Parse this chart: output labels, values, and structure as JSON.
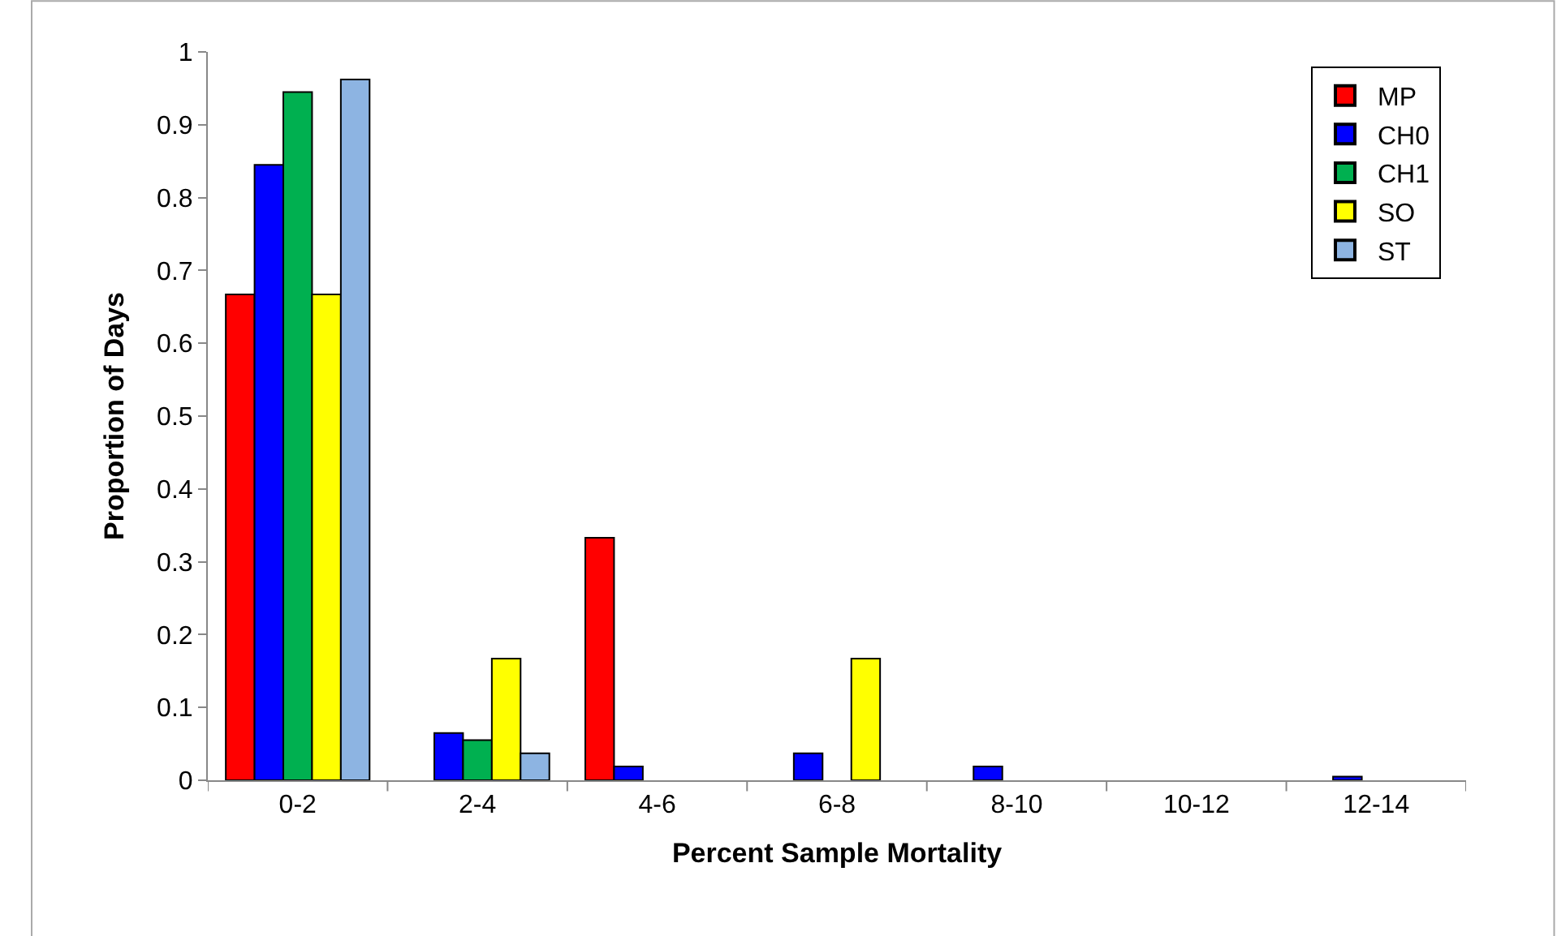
{
  "chart_data": {
    "type": "bar",
    "xlabel": "Percent Sample Mortality",
    "ylabel": "Proportion of Days",
    "categories": [
      "0-2",
      "2-4",
      "4-6",
      "6-8",
      "8-10",
      "10-12",
      "12-14"
    ],
    "series": [
      {
        "name": "MP",
        "color": "#ff0000",
        "values": [
          0.667,
          0,
          0.333,
          0,
          0,
          0,
          0
        ]
      },
      {
        "name": "CH0",
        "color": "#0000ff",
        "values": [
          0.845,
          0.065,
          0.019,
          0.037,
          0.019,
          0,
          0.005
        ]
      },
      {
        "name": "CH1",
        "color": "#00b050",
        "values": [
          0.945,
          0.055,
          0,
          0,
          0,
          0,
          0
        ]
      },
      {
        "name": "SO",
        "color": "#ffff00",
        "values": [
          0.667,
          0.167,
          0,
          0.167,
          0,
          0,
          0
        ]
      },
      {
        "name": "ST",
        "color": "#8db4e2",
        "values": [
          0.962,
          0.037,
          0,
          0,
          0,
          0,
          0
        ]
      }
    ],
    "ylim": [
      0,
      1
    ],
    "yticks": [
      0,
      0.1,
      0.2,
      0.3,
      0.4,
      0.5,
      0.6,
      0.7,
      0.8,
      0.9,
      1
    ],
    "legend": "top right"
  }
}
